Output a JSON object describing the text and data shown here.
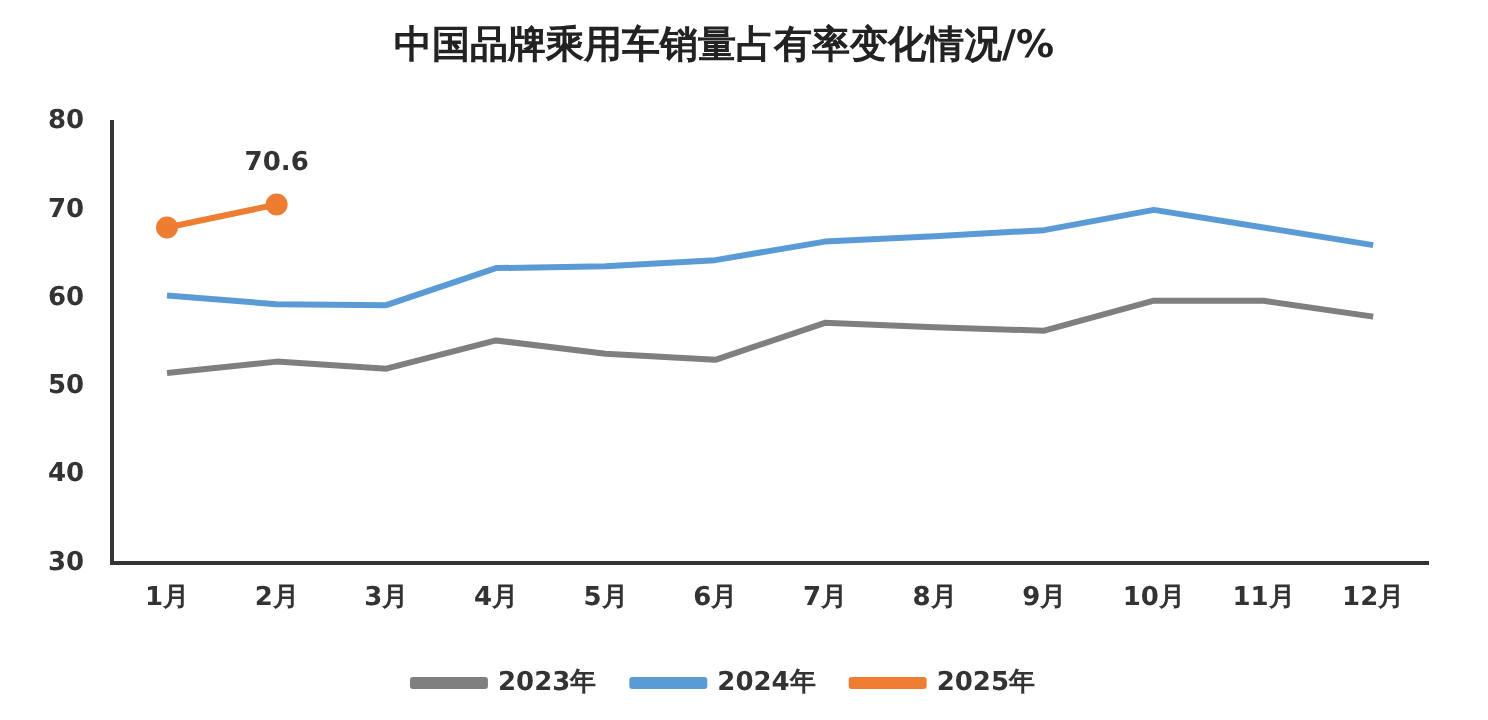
{
  "chart_data": {
    "type": "line",
    "title": "中国品牌乘用车销量占有率变化情况/%",
    "categories": [
      "1月",
      "2月",
      "3月",
      "4月",
      "5月",
      "6月",
      "7月",
      "8月",
      "9月",
      "10月",
      "11月",
      "12月"
    ],
    "series": [
      {
        "name": "2023年",
        "color": "#7f7f7f",
        "marker": "none",
        "values": [
          51.5,
          52.8,
          52,
          55.2,
          53.7,
          53,
          57.2,
          56.7,
          56.3,
          59.7,
          59.7,
          57.9
        ]
      },
      {
        "name": "2024年",
        "color": "#5b9bd5",
        "marker": "none",
        "values": [
          60.3,
          59.3,
          59.2,
          63.4,
          63.6,
          64.3,
          66.4,
          67,
          67.7,
          70,
          68,
          66
        ]
      },
      {
        "name": "2025年",
        "color": "#ed7d31",
        "marker": "circle",
        "values": [
          68,
          70.6,
          null,
          null,
          null,
          null,
          null,
          null,
          null,
          null,
          null,
          null
        ],
        "value_labels": [
          null,
          "70.6",
          null,
          null,
          null,
          null,
          null,
          null,
          null,
          null,
          null,
          null
        ]
      }
    ],
    "ylim": [
      30,
      80
    ],
    "yticks": [
      30,
      40,
      50,
      60,
      70,
      80
    ],
    "grid": false,
    "legend": "bottom"
  }
}
